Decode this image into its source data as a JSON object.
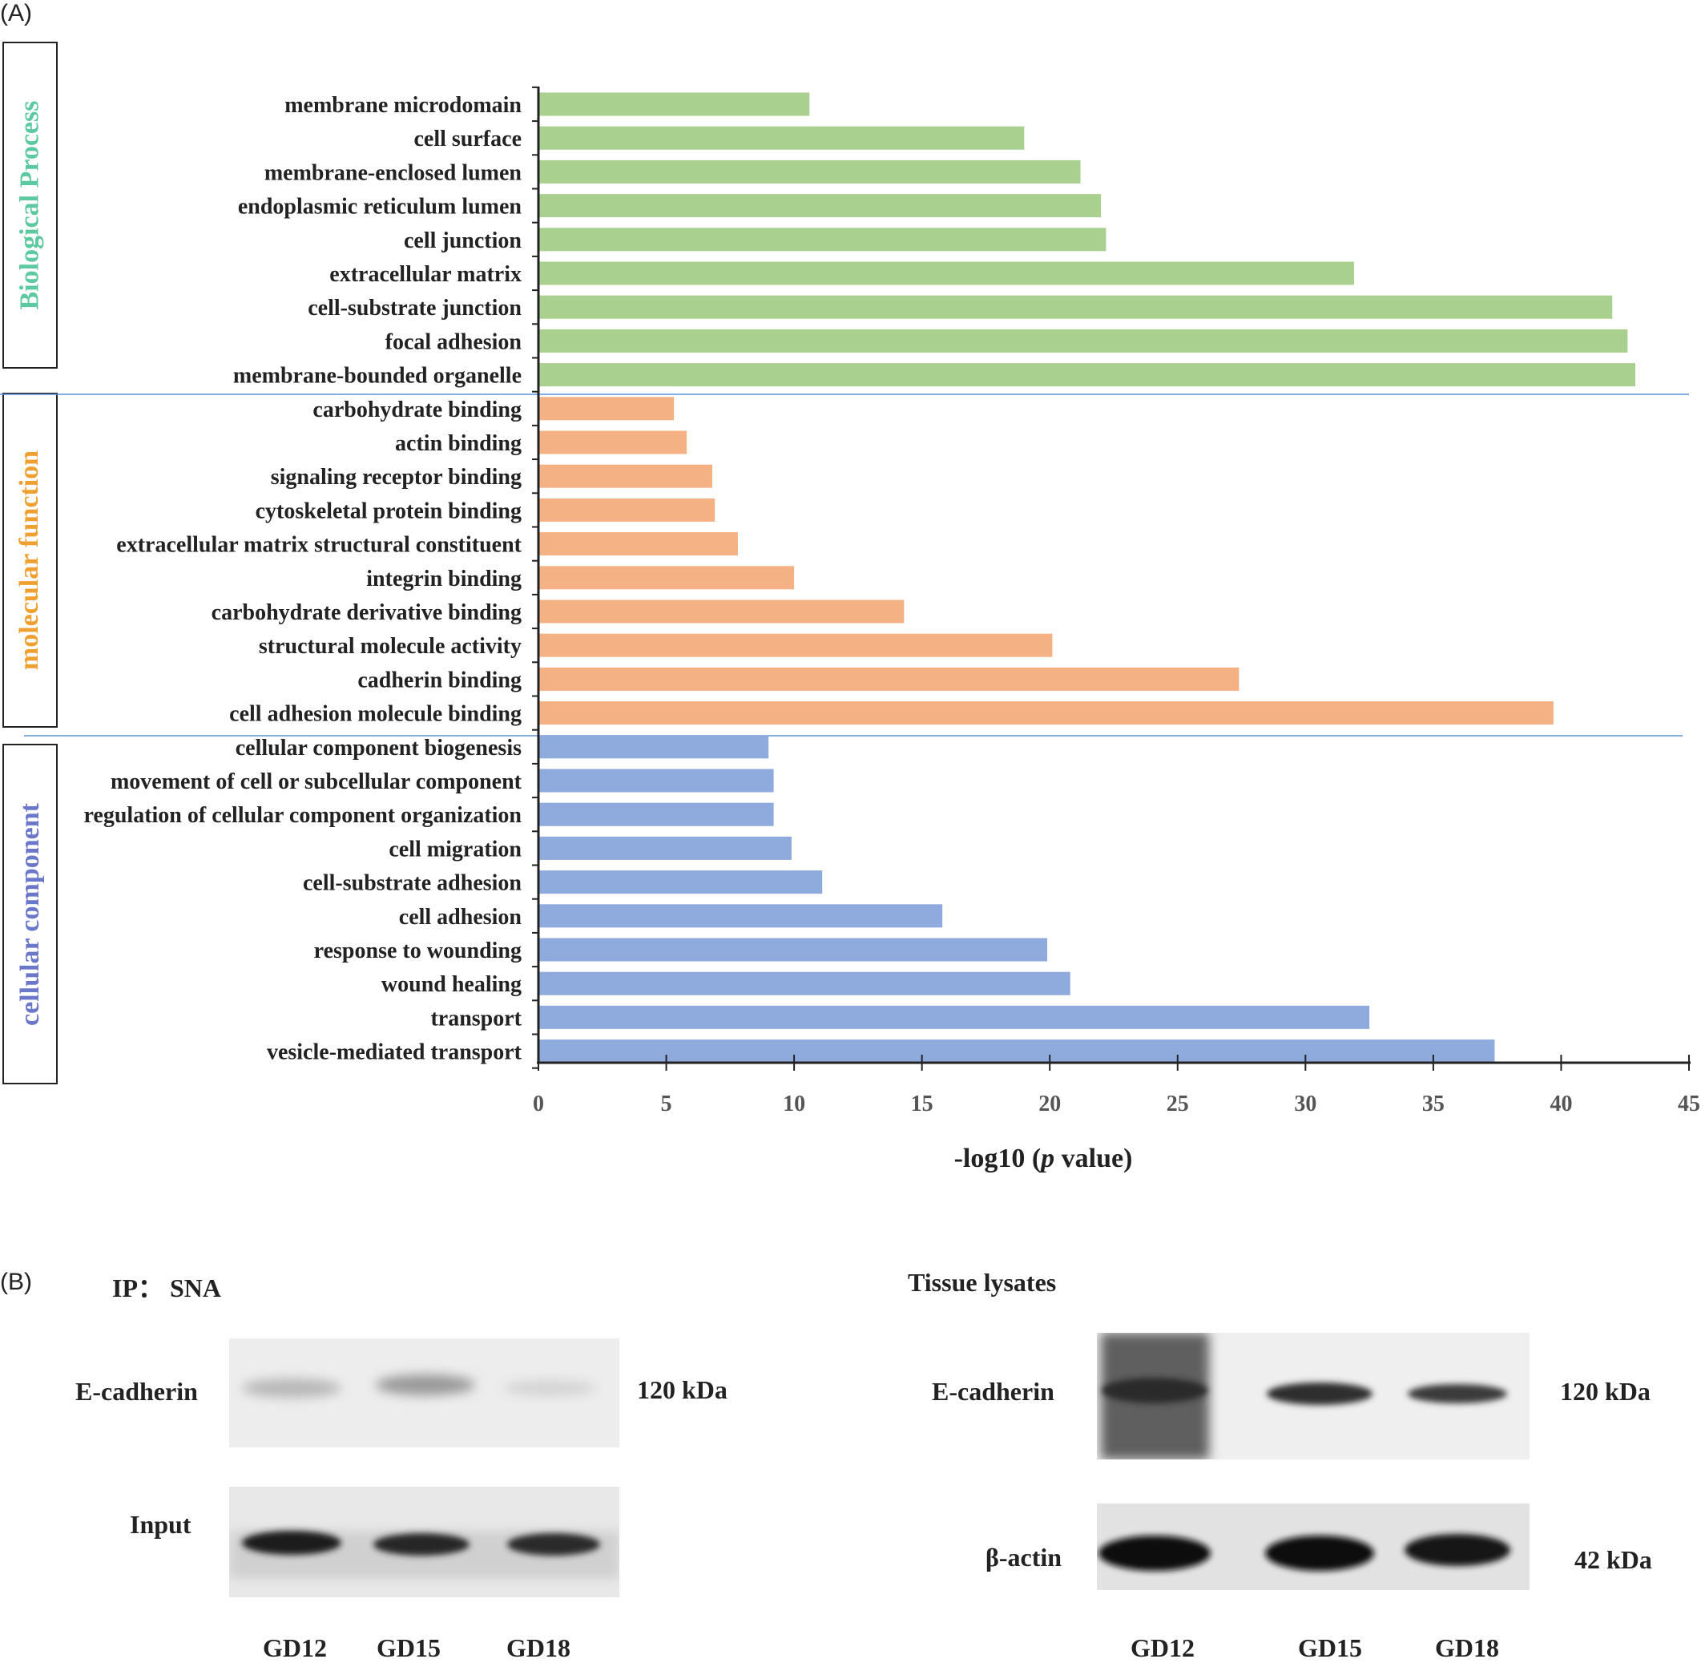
{
  "panels": {
    "a": "(A)",
    "b": "(B)"
  },
  "categories": [
    {
      "name": "Biological Process",
      "color": "#5cc9a0"
    },
    {
      "name": "molecular function",
      "color": "#f0a030"
    },
    {
      "name": "cellular component",
      "color": "#6b77c8"
    }
  ],
  "chart_data": {
    "type": "bar",
    "orientation": "horizontal",
    "xlabel_pre": "-log10 (",
    "xlabel_italic": "p",
    "xlabel_post": " value)",
    "xlim": [
      0,
      45
    ],
    "xticks": [
      0,
      5,
      10,
      15,
      20,
      25,
      30,
      35,
      40,
      45
    ],
    "series": [
      {
        "name": "Biological Process",
        "color": "#a9d08e",
        "categories": [
          "membrane microdomain",
          "cell surface",
          "membrane-enclosed lumen",
          "endoplasmic reticulum lumen",
          "cell junction",
          "extracellular matrix",
          "cell-substrate junction",
          "focal adhesion",
          "membrane-bounded organelle"
        ],
        "values": [
          10.6,
          19.0,
          21.2,
          22.0,
          22.2,
          31.9,
          42.0,
          42.6,
          42.9
        ]
      },
      {
        "name": "molecular function",
        "color": "#f4b183",
        "categories": [
          "carbohydrate binding",
          "actin binding",
          "signaling receptor binding",
          "cytoskeletal protein binding",
          "extracellular matrix structural constituent",
          "integrin binding",
          "carbohydrate derivative binding",
          "structural molecule activity",
          "cadherin binding",
          "cell adhesion molecule binding"
        ],
        "values": [
          5.3,
          5.8,
          6.8,
          6.9,
          7.8,
          10.0,
          14.3,
          20.1,
          27.4,
          39.7
        ]
      },
      {
        "name": "cellular component",
        "color": "#8faadc",
        "categories": [
          "cellular component biogenesis",
          "movement of cell or subcellular component",
          "regulation of cellular component organization",
          "cell migration",
          "cell-substrate adhesion",
          "cell adhesion",
          "response to wounding",
          "wound healing",
          "transport",
          "vesicle-mediated transport"
        ],
        "values": [
          9.0,
          9.2,
          9.2,
          9.9,
          11.1,
          15.8,
          19.9,
          20.8,
          32.5,
          37.4
        ]
      }
    ]
  },
  "blots": {
    "left": {
      "title": "IP： SNA",
      "row1_label": "E-cadherin",
      "row1_kda": "120 kDa",
      "row2_label": "Input",
      "lanes": [
        "GD12",
        "GD15",
        "GD18"
      ]
    },
    "right": {
      "title": "Tissue lysates",
      "row1_label": "E-cadherin",
      "row1_kda": "120 kDa",
      "row2_label": "β-actin",
      "row2_kda": "42 kDa",
      "lanes": [
        "GD12",
        "GD15",
        "GD18"
      ]
    }
  }
}
